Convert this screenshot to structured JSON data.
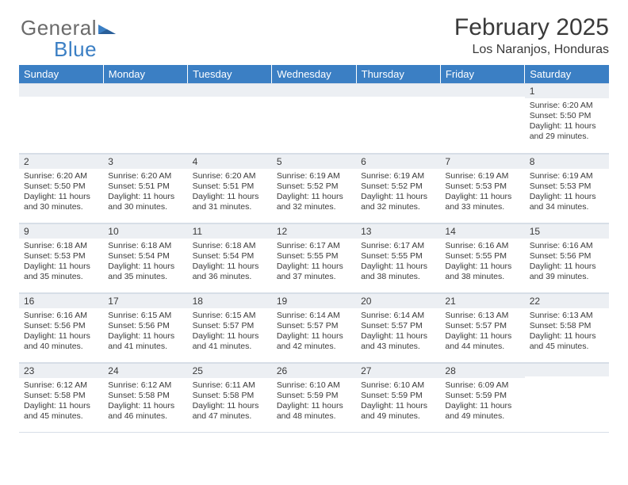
{
  "brand": {
    "part1": "General",
    "part2": "Blue"
  },
  "title": "February 2025",
  "location": "Los Naranjos, Honduras",
  "colors": {
    "header_bg": "#3b7fc4",
    "header_text": "#ffffff",
    "daynum_bg": "#eceff3",
    "border": "#d7dee7",
    "body_text": "#3a3a3a",
    "page_bg": "#ffffff"
  },
  "weekdays": [
    "Sunday",
    "Monday",
    "Tuesday",
    "Wednesday",
    "Thursday",
    "Friday",
    "Saturday"
  ],
  "weeks": [
    [
      {
        "n": "",
        "t": ""
      },
      {
        "n": "",
        "t": ""
      },
      {
        "n": "",
        "t": ""
      },
      {
        "n": "",
        "t": ""
      },
      {
        "n": "",
        "t": ""
      },
      {
        "n": "",
        "t": ""
      },
      {
        "n": "1",
        "t": "Sunrise: 6:20 AM\nSunset: 5:50 PM\nDaylight: 11 hours and 29 minutes."
      }
    ],
    [
      {
        "n": "2",
        "t": "Sunrise: 6:20 AM\nSunset: 5:50 PM\nDaylight: 11 hours and 30 minutes."
      },
      {
        "n": "3",
        "t": "Sunrise: 6:20 AM\nSunset: 5:51 PM\nDaylight: 11 hours and 30 minutes."
      },
      {
        "n": "4",
        "t": "Sunrise: 6:20 AM\nSunset: 5:51 PM\nDaylight: 11 hours and 31 minutes."
      },
      {
        "n": "5",
        "t": "Sunrise: 6:19 AM\nSunset: 5:52 PM\nDaylight: 11 hours and 32 minutes."
      },
      {
        "n": "6",
        "t": "Sunrise: 6:19 AM\nSunset: 5:52 PM\nDaylight: 11 hours and 32 minutes."
      },
      {
        "n": "7",
        "t": "Sunrise: 6:19 AM\nSunset: 5:53 PM\nDaylight: 11 hours and 33 minutes."
      },
      {
        "n": "8",
        "t": "Sunrise: 6:19 AM\nSunset: 5:53 PM\nDaylight: 11 hours and 34 minutes."
      }
    ],
    [
      {
        "n": "9",
        "t": "Sunrise: 6:18 AM\nSunset: 5:53 PM\nDaylight: 11 hours and 35 minutes."
      },
      {
        "n": "10",
        "t": "Sunrise: 6:18 AM\nSunset: 5:54 PM\nDaylight: 11 hours and 35 minutes."
      },
      {
        "n": "11",
        "t": "Sunrise: 6:18 AM\nSunset: 5:54 PM\nDaylight: 11 hours and 36 minutes."
      },
      {
        "n": "12",
        "t": "Sunrise: 6:17 AM\nSunset: 5:55 PM\nDaylight: 11 hours and 37 minutes."
      },
      {
        "n": "13",
        "t": "Sunrise: 6:17 AM\nSunset: 5:55 PM\nDaylight: 11 hours and 38 minutes."
      },
      {
        "n": "14",
        "t": "Sunrise: 6:16 AM\nSunset: 5:55 PM\nDaylight: 11 hours and 38 minutes."
      },
      {
        "n": "15",
        "t": "Sunrise: 6:16 AM\nSunset: 5:56 PM\nDaylight: 11 hours and 39 minutes."
      }
    ],
    [
      {
        "n": "16",
        "t": "Sunrise: 6:16 AM\nSunset: 5:56 PM\nDaylight: 11 hours and 40 minutes."
      },
      {
        "n": "17",
        "t": "Sunrise: 6:15 AM\nSunset: 5:56 PM\nDaylight: 11 hours and 41 minutes."
      },
      {
        "n": "18",
        "t": "Sunrise: 6:15 AM\nSunset: 5:57 PM\nDaylight: 11 hours and 41 minutes."
      },
      {
        "n": "19",
        "t": "Sunrise: 6:14 AM\nSunset: 5:57 PM\nDaylight: 11 hours and 42 minutes."
      },
      {
        "n": "20",
        "t": "Sunrise: 6:14 AM\nSunset: 5:57 PM\nDaylight: 11 hours and 43 minutes."
      },
      {
        "n": "21",
        "t": "Sunrise: 6:13 AM\nSunset: 5:57 PM\nDaylight: 11 hours and 44 minutes."
      },
      {
        "n": "22",
        "t": "Sunrise: 6:13 AM\nSunset: 5:58 PM\nDaylight: 11 hours and 45 minutes."
      }
    ],
    [
      {
        "n": "23",
        "t": "Sunrise: 6:12 AM\nSunset: 5:58 PM\nDaylight: 11 hours and 45 minutes."
      },
      {
        "n": "24",
        "t": "Sunrise: 6:12 AM\nSunset: 5:58 PM\nDaylight: 11 hours and 46 minutes."
      },
      {
        "n": "25",
        "t": "Sunrise: 6:11 AM\nSunset: 5:58 PM\nDaylight: 11 hours and 47 minutes."
      },
      {
        "n": "26",
        "t": "Sunrise: 6:10 AM\nSunset: 5:59 PM\nDaylight: 11 hours and 48 minutes."
      },
      {
        "n": "27",
        "t": "Sunrise: 6:10 AM\nSunset: 5:59 PM\nDaylight: 11 hours and 49 minutes."
      },
      {
        "n": "28",
        "t": "Sunrise: 6:09 AM\nSunset: 5:59 PM\nDaylight: 11 hours and 49 minutes."
      },
      {
        "n": "",
        "t": ""
      }
    ]
  ]
}
